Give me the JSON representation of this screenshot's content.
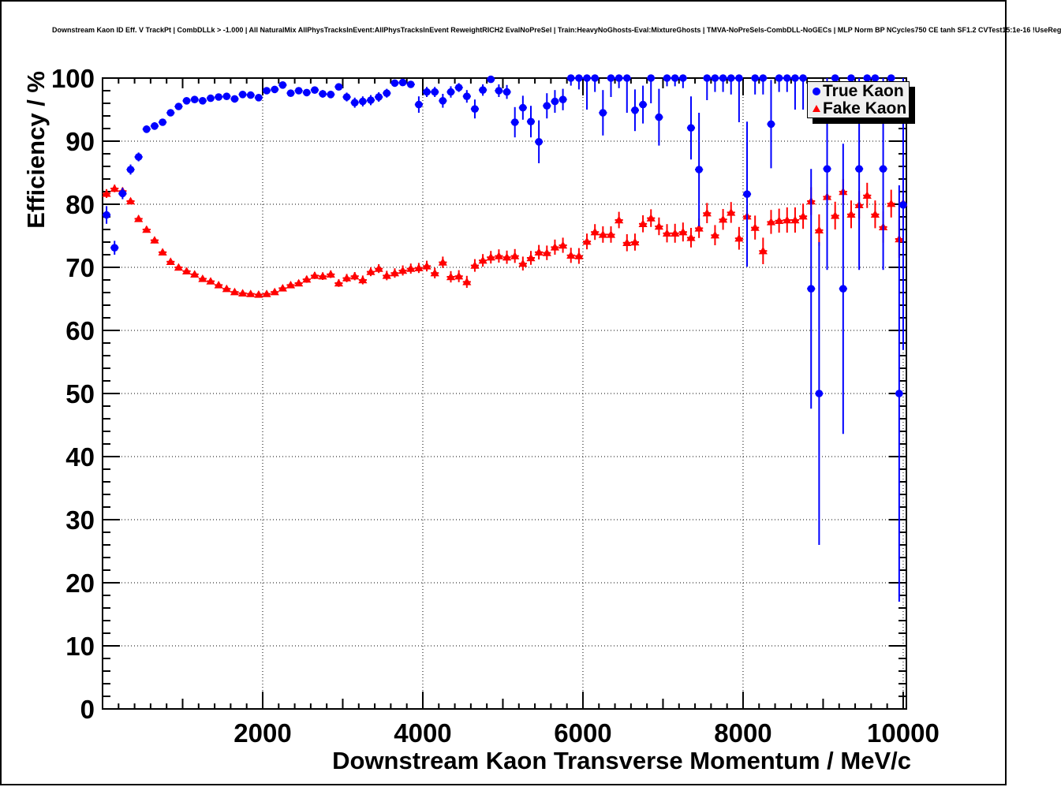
{
  "axes": {
    "x": {
      "label": "Downstream Kaon Transverse Momentum / MeV/c",
      "ticks": [
        2000,
        4000,
        6000,
        8000,
        10000
      ],
      "minor_step": 200,
      "mid_step": 1000
    },
    "y": {
      "label": "Efficiency / %",
      "ticks": [
        0,
        10,
        20,
        30,
        40,
        50,
        60,
        70,
        80,
        90,
        100
      ],
      "minor_step": 2
    }
  },
  "legend": {
    "position": "top-right",
    "items": [
      {
        "label": "True Kaon",
        "marker": "circle",
        "color": "#0000ff"
      },
      {
        "label": "Fake Kaon",
        "marker": "triangle",
        "color": "#ff0000"
      }
    ]
  },
  "chart_data": {
    "type": "scatter",
    "title": "Downstream Kaon ID Eff. V TrackPt | CombDLLk > -1.000 | All NaturalMix AllPhysTracksInEvent:AllPhysTracksInEvent ReweightRICH2 EvalNoPreSel | Train:HeavyNoGhosts-Eval:MixtureGhosts | TMVA-NoPreSels-CombDLL-NoGECs | MLP Norm BP NCycles750 CE tanh SF1.2 CVTest15:1e-16 !UseReg",
    "xlabel": "Downstream Kaon Transverse Momentum / MeV/c",
    "ylabel": "Efficiency / %",
    "xlim": [
      0,
      10040
    ],
    "ylim": [
      0,
      100
    ],
    "grid": "dotted",
    "grid_x": [
      2000,
      4000,
      6000,
      8000,
      10000
    ],
    "grid_y": [
      10,
      20,
      30,
      40,
      50,
      60,
      70,
      80,
      90
    ],
    "x_bin_halfwidth": 50,
    "series": [
      {
        "name": "True Kaon",
        "marker": "circle",
        "color": "#0000ff",
        "points": [
          [
            50,
            78.3,
            1.4
          ],
          [
            150,
            73.1,
            1.1
          ],
          [
            250,
            81.7,
            0.9
          ],
          [
            350,
            85.5,
            0.8
          ],
          [
            450,
            87.5,
            0.7
          ],
          [
            550,
            91.9,
            0.6
          ],
          [
            650,
            92.4,
            0.6
          ],
          [
            750,
            93.0,
            0.55
          ],
          [
            850,
            94.5,
            0.5
          ],
          [
            950,
            95.5,
            0.45
          ],
          [
            1050,
            96.4,
            0.4
          ],
          [
            1150,
            96.6,
            0.4
          ],
          [
            1250,
            96.4,
            0.4
          ],
          [
            1350,
            96.8,
            0.4
          ],
          [
            1450,
            97.0,
            0.4
          ],
          [
            1550,
            97.1,
            0.4
          ],
          [
            1650,
            96.7,
            0.45
          ],
          [
            1750,
            97.4,
            0.4
          ],
          [
            1850,
            97.3,
            0.4
          ],
          [
            1950,
            96.9,
            0.45
          ],
          [
            2050,
            98.0,
            0.4
          ],
          [
            2150,
            98.2,
            0.4
          ],
          [
            2250,
            98.9,
            0.35
          ],
          [
            2350,
            97.6,
            0.5
          ],
          [
            2450,
            98.0,
            0.5
          ],
          [
            2550,
            97.7,
            0.55
          ],
          [
            2650,
            98.1,
            0.5
          ],
          [
            2750,
            97.5,
            0.6
          ],
          [
            2850,
            97.4,
            0.6
          ],
          [
            2950,
            98.6,
            0.5
          ],
          [
            3050,
            97.0,
            0.7
          ],
          [
            3150,
            96.1,
            0.8
          ],
          [
            3250,
            96.3,
            0.8
          ],
          [
            3350,
            96.5,
            0.8
          ],
          [
            3450,
            97.0,
            0.75
          ],
          [
            3550,
            97.6,
            0.7
          ],
          [
            3650,
            99.2,
            0.4
          ],
          [
            3750,
            99.3,
            0.4
          ],
          [
            3850,
            99.0,
            0.45
          ],
          [
            3950,
            95.8,
            1.3
          ],
          [
            4050,
            97.8,
            0.8
          ],
          [
            4150,
            97.8,
            0.8
          ],
          [
            4250,
            96.4,
            1.1
          ],
          [
            4350,
            97.8,
            0.9
          ],
          [
            4450,
            98.5,
            0.7
          ],
          [
            4550,
            97.1,
            1.0
          ],
          [
            4650,
            95.1,
            1.5
          ],
          [
            4750,
            98.1,
            0.9
          ],
          [
            4850,
            99.8,
            0.3
          ],
          [
            4950,
            98.0,
            1.0
          ],
          [
            5050,
            97.8,
            1.1
          ],
          [
            5150,
            93.0,
            2.4
          ],
          [
            5250,
            95.3,
            1.9
          ],
          [
            5350,
            93.1,
            2.5
          ],
          [
            5450,
            89.9,
            3.4
          ],
          [
            5550,
            95.6,
            2.0
          ],
          [
            5650,
            96.3,
            1.8
          ],
          [
            5750,
            96.6,
            1.7
          ],
          [
            5850,
            100,
            1.2
          ],
          [
            5950,
            100,
            1.8
          ],
          [
            6050,
            100,
            5.0
          ],
          [
            6150,
            100,
            2.2
          ],
          [
            6250,
            94.5,
            3.6
          ],
          [
            6350,
            100,
            3.0
          ],
          [
            6450,
            100,
            1.6
          ],
          [
            6550,
            100,
            5.5
          ],
          [
            6650,
            94.9,
            3.3
          ],
          [
            6750,
            95.8,
            3.0
          ],
          [
            6850,
            100,
            4.0
          ],
          [
            6950,
            93.8,
            4.5
          ],
          [
            7050,
            100,
            1.3
          ],
          [
            7150,
            100,
            1.3
          ],
          [
            7250,
            100,
            1.6
          ],
          [
            7350,
            92.1,
            5.0
          ],
          [
            7450,
            85.5,
            9.0
          ],
          [
            7550,
            100,
            3.5
          ],
          [
            7650,
            100,
            2.2
          ],
          [
            7750,
            100,
            2.2
          ],
          [
            7850,
            100,
            2.6
          ],
          [
            7950,
            100,
            7.0
          ],
          [
            8050,
            81.6,
            11.5
          ],
          [
            8150,
            100,
            2.6
          ],
          [
            8250,
            100,
            2.6
          ],
          [
            8350,
            92.7,
            7.0
          ],
          [
            8450,
            100,
            2.2
          ],
          [
            8550,
            100,
            2.2
          ],
          [
            8650,
            100,
            5.0
          ],
          [
            8750,
            100,
            5.0
          ],
          [
            8850,
            66.6,
            19.0
          ],
          [
            8950,
            50.0,
            24.0
          ],
          [
            9050,
            85.6,
            16.0
          ],
          [
            9150,
            100,
            5.5
          ],
          [
            9250,
            66.6,
            23.0
          ],
          [
            9350,
            100,
            5.5
          ],
          [
            9450,
            85.6,
            16.0
          ],
          [
            9550,
            100,
            4.5
          ],
          [
            9650,
            100,
            4.5
          ],
          [
            9750,
            85.6,
            16.0
          ],
          [
            9850,
            100,
            4.5
          ],
          [
            9950,
            50.0,
            33.0
          ],
          [
            10000,
            79.9,
            23.0
          ]
        ]
      },
      {
        "name": "Fake Kaon",
        "marker": "triangle",
        "color": "#ff0000",
        "points": [
          [
            50,
            81.7,
            0.7
          ],
          [
            150,
            82.5,
            0.6
          ],
          [
            250,
            82.1,
            0.55
          ],
          [
            350,
            80.5,
            0.5
          ],
          [
            450,
            77.7,
            0.5
          ],
          [
            550,
            76.0,
            0.5
          ],
          [
            650,
            74.3,
            0.5
          ],
          [
            750,
            72.4,
            0.5
          ],
          [
            850,
            70.9,
            0.45
          ],
          [
            950,
            70.0,
            0.45
          ],
          [
            1050,
            69.4,
            0.4
          ],
          [
            1150,
            68.9,
            0.4
          ],
          [
            1250,
            68.2,
            0.4
          ],
          [
            1350,
            67.8,
            0.4
          ],
          [
            1450,
            67.2,
            0.4
          ],
          [
            1550,
            66.6,
            0.4
          ],
          [
            1650,
            66.1,
            0.4
          ],
          [
            1750,
            65.9,
            0.4
          ],
          [
            1850,
            65.8,
            0.4
          ],
          [
            1950,
            65.7,
            0.45
          ],
          [
            2050,
            65.8,
            0.45
          ],
          [
            2150,
            66.1,
            0.45
          ],
          [
            2250,
            66.7,
            0.5
          ],
          [
            2350,
            67.2,
            0.5
          ],
          [
            2450,
            67.5,
            0.5
          ],
          [
            2550,
            68.1,
            0.55
          ],
          [
            2650,
            68.7,
            0.55
          ],
          [
            2750,
            68.6,
            0.6
          ],
          [
            2850,
            68.9,
            0.6
          ],
          [
            2950,
            67.5,
            0.6
          ],
          [
            3050,
            68.3,
            0.65
          ],
          [
            3150,
            68.6,
            0.65
          ],
          [
            3250,
            68.0,
            0.7
          ],
          [
            3350,
            69.3,
            0.7
          ],
          [
            3450,
            69.8,
            0.7
          ],
          [
            3550,
            68.7,
            0.75
          ],
          [
            3650,
            69.1,
            0.75
          ],
          [
            3750,
            69.5,
            0.8
          ],
          [
            3850,
            69.8,
            0.8
          ],
          [
            3950,
            69.9,
            0.8
          ],
          [
            4050,
            70.2,
            0.85
          ],
          [
            4150,
            69.1,
            0.85
          ],
          [
            4250,
            70.8,
            0.9
          ],
          [
            4350,
            68.5,
            0.9
          ],
          [
            4450,
            68.6,
            0.95
          ],
          [
            4550,
            67.7,
            0.95
          ],
          [
            4650,
            70.3,
            1.0
          ],
          [
            4750,
            71.1,
            1.0
          ],
          [
            4850,
            71.6,
            1.0
          ],
          [
            4950,
            71.8,
            1.05
          ],
          [
            5050,
            71.6,
            1.05
          ],
          [
            5150,
            71.8,
            1.1
          ],
          [
            5250,
            70.6,
            1.1
          ],
          [
            5350,
            71.5,
            1.1
          ],
          [
            5450,
            72.4,
            1.15
          ],
          [
            5550,
            72.3,
            1.15
          ],
          [
            5650,
            73.2,
            1.2
          ],
          [
            5750,
            73.5,
            1.2
          ],
          [
            5850,
            71.9,
            1.2
          ],
          [
            5950,
            71.8,
            1.25
          ],
          [
            6050,
            74.1,
            1.25
          ],
          [
            6150,
            75.6,
            1.25
          ],
          [
            6250,
            75.2,
            1.3
          ],
          [
            6350,
            75.2,
            1.3
          ],
          [
            6450,
            77.5,
            1.3
          ],
          [
            6550,
            73.9,
            1.35
          ],
          [
            6650,
            74.0,
            1.35
          ],
          [
            6750,
            76.9,
            1.35
          ],
          [
            6850,
            77.8,
            1.4
          ],
          [
            6950,
            76.5,
            1.4
          ],
          [
            7050,
            75.4,
            1.45
          ],
          [
            7150,
            75.4,
            1.5
          ],
          [
            7250,
            75.6,
            1.5
          ],
          [
            7350,
            74.7,
            1.55
          ],
          [
            7450,
            76.2,
            1.55
          ],
          [
            7550,
            78.6,
            1.6
          ],
          [
            7650,
            75.1,
            1.6
          ],
          [
            7750,
            77.6,
            1.65
          ],
          [
            7850,
            78.7,
            1.65
          ],
          [
            7950,
            74.6,
            1.8
          ],
          [
            8050,
            78.1,
            1.8
          ],
          [
            8150,
            76.3,
            1.9
          ],
          [
            8250,
            72.6,
            2.1
          ],
          [
            8350,
            77.2,
            1.9
          ],
          [
            8450,
            77.4,
            1.9
          ],
          [
            8550,
            77.5,
            2.0
          ],
          [
            8650,
            77.5,
            2.0
          ],
          [
            8750,
            78.1,
            2.0
          ],
          [
            8850,
            80.5,
            2.2
          ],
          [
            8950,
            75.9,
            2.5
          ],
          [
            9050,
            81.2,
            2.0
          ],
          [
            9150,
            78.2,
            2.2
          ],
          [
            9250,
            82.0,
            2.0
          ],
          [
            9350,
            78.4,
            2.2
          ],
          [
            9450,
            79.9,
            2.2
          ],
          [
            9550,
            81.4,
            2.0
          ],
          [
            9650,
            78.4,
            2.2
          ],
          [
            9750,
            76.4,
            2.5
          ],
          [
            9850,
            80.1,
            2.2
          ],
          [
            9950,
            74.5,
            3.0
          ],
          [
            10000,
            80.2,
            3.5
          ]
        ]
      }
    ]
  }
}
